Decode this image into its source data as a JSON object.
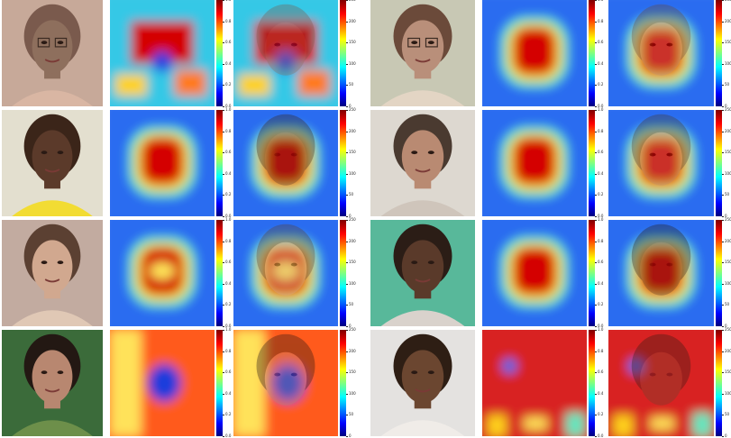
{
  "colorbars": {
    "attention": [
      "1.0",
      "0.8",
      "0.6",
      "0.4",
      "0.2",
      "0.0"
    ],
    "overlay": [
      "250",
      "200",
      "150",
      "100",
      "50",
      "0"
    ]
  },
  "colors": {
    "background": "#ffffff",
    "map_low": "#1e4fe0",
    "map_mid": "#3fe0d8",
    "map_high": "#d40000"
  },
  "rows": [
    {
      "left": "woman with glasses talking",
      "right": "smiling woman with glasses"
    },
    {
      "left": "woman with long hair in profile",
      "right": "woman with braided hair, green background"
    },
    {
      "left": "woman with short curly hair, yellow top",
      "right": "woman with dark hair, foliage background"
    },
    {
      "left": "man with short hair in profile",
      "right": "man with dreadlocks"
    }
  ]
}
